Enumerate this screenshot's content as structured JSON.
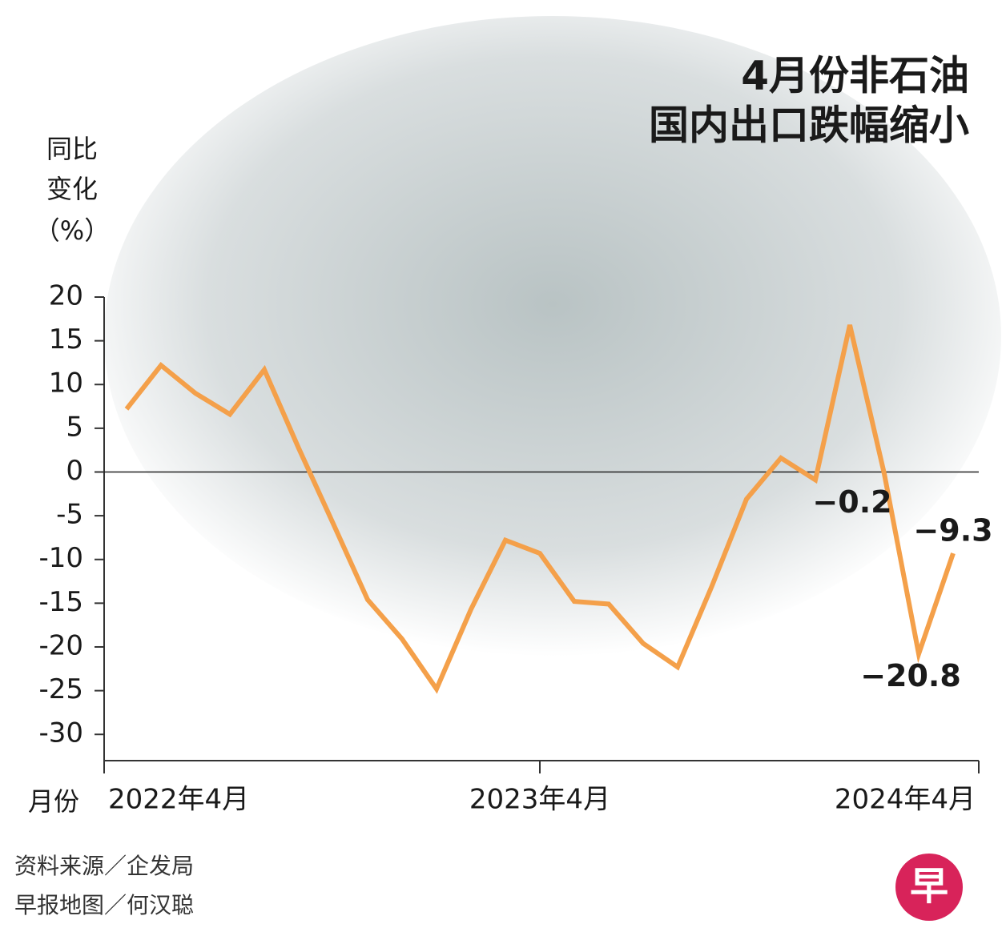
{
  "chart_data": {
    "type": "line",
    "title": [
      "4月份非石油",
      "国内出口跌幅缩小"
    ],
    "ylabel": [
      "同比",
      "变化",
      "（%）"
    ],
    "xlabel": "月份",
    "source": "资料来源／企发局",
    "credit": "早报地图／何汉聪",
    "logo": "早",
    "categories": [
      "2022年4月",
      null,
      null,
      null,
      null,
      null,
      null,
      null,
      null,
      null,
      null,
      null,
      "2023年4月",
      null,
      null,
      null,
      null,
      null,
      null,
      null,
      null,
      null,
      null,
      null,
      "2024年4月"
    ],
    "series": [
      {
        "color": "#f4a04a",
        "values": [
          7.2,
          12.2,
          9.0,
          6.6,
          11.7,
          2.7,
          -5.9,
          -14.6,
          -19.1,
          -24.8,
          -15.7,
          -7.8,
          -9.3,
          -14.8,
          -15.1,
          -19.6,
          -22.3,
          -13.0,
          -3.1,
          1.6,
          -0.9,
          16.8,
          -0.2,
          -20.8,
          -9.3
        ],
        "value_labels": [
          null,
          null,
          null,
          null,
          null,
          null,
          null,
          null,
          null,
          null,
          null,
          null,
          null,
          null,
          null,
          null,
          null,
          null,
          null,
          null,
          null,
          null,
          "−0.2",
          "−20.8",
          "−9.3"
        ]
      }
    ],
    "ylim": [
      -33,
      20
    ],
    "yticks": [
      20,
      15,
      10,
      5,
      0,
      -5,
      -10,
      -15,
      -20,
      -25,
      -30
    ]
  }
}
